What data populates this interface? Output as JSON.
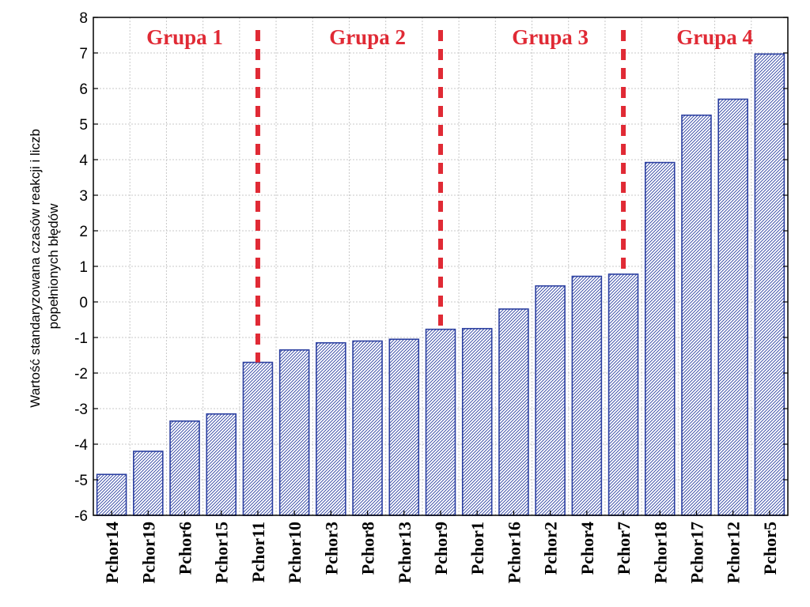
{
  "chart_data": {
    "type": "bar",
    "categories": [
      "Pchor14",
      "Pchor19",
      "Pchor6",
      "Pchor15",
      "Pchor11",
      "Pchor10",
      "Pchor3",
      "Pchor8",
      "Pchor13",
      "Pchor9",
      "Pchor1",
      "Pchor16",
      "Pchor2",
      "Pchor4",
      "Pchor7",
      "Pchor18",
      "Pchor17",
      "Pchor12",
      "Pchor5"
    ],
    "values": [
      -4.85,
      -4.2,
      -3.35,
      -3.15,
      -1.7,
      -1.35,
      -1.15,
      -1.1,
      -1.05,
      -0.77,
      -0.75,
      -0.2,
      0.45,
      0.72,
      0.78,
      3.92,
      5.25,
      5.7,
      6.97
    ],
    "ylabel_lines": [
      "Wartość standaryzowana czasów reakcji i liczb",
      "popełnionych błędów"
    ],
    "ylim": [
      -6,
      8
    ],
    "yticks": [
      8,
      7,
      6,
      5,
      4,
      3,
      2,
      1,
      0,
      -1,
      -2,
      -3,
      -4,
      -5,
      -6
    ],
    "grid": true,
    "bar_color": "#2b3fa0",
    "separator_color": "#e02a35",
    "groups": [
      {
        "label": "Grupa 1",
        "start": 0,
        "end": 4
      },
      {
        "label": "Grupa 2",
        "start": 5,
        "end": 9
      },
      {
        "label": "Grupa 3",
        "start": 10,
        "end": 14
      },
      {
        "label": "Grupa 4",
        "start": 15,
        "end": 18
      }
    ],
    "separators_after": [
      4,
      9,
      14
    ]
  }
}
